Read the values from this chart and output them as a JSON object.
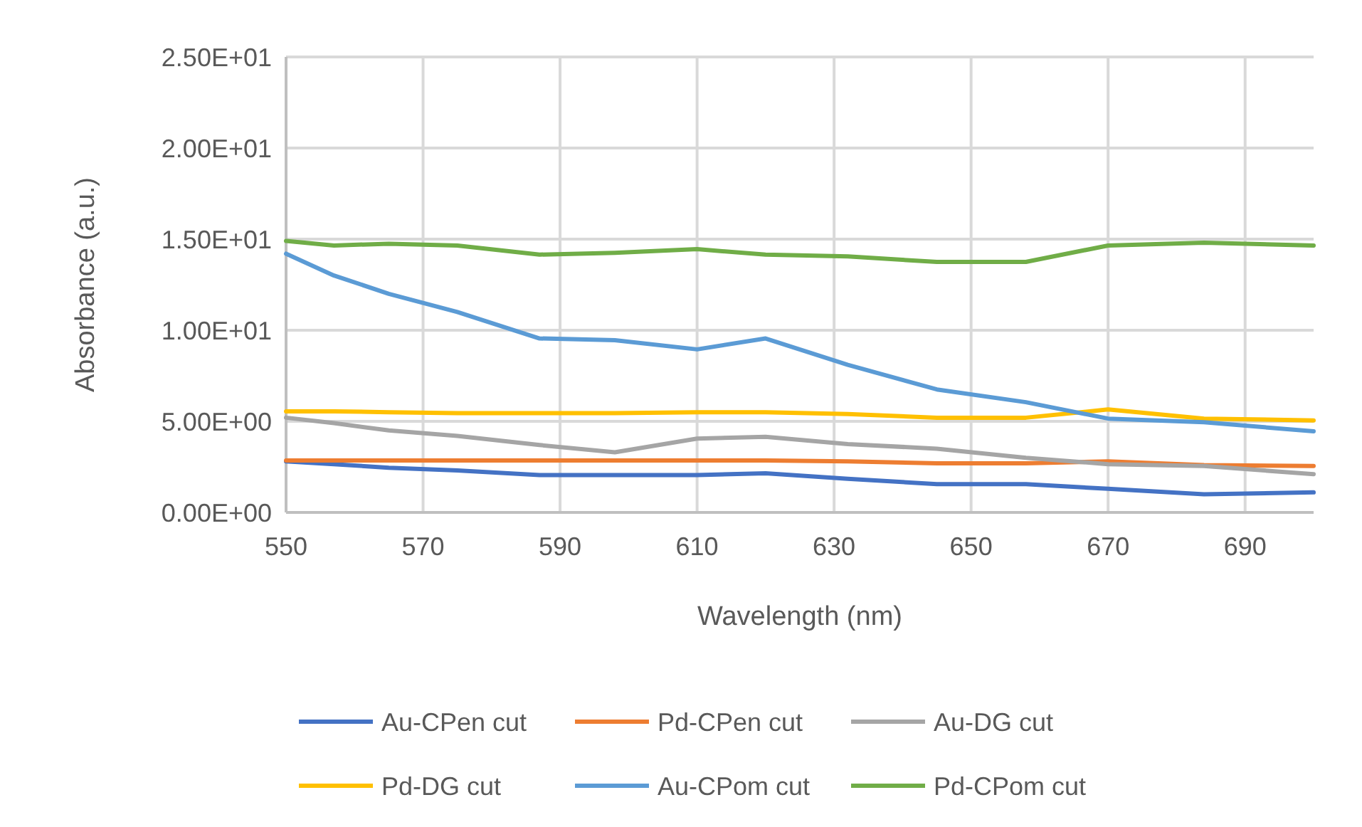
{
  "chart_data": {
    "type": "line",
    "xlabel": "Wavelength (nm)",
    "ylabel": "Absorbance (a.u.)",
    "x": [
      550,
      557,
      565,
      575,
      587,
      598,
      610,
      620,
      632,
      645,
      658,
      670,
      684,
      700
    ],
    "series": [
      {
        "name": "Au-CPen cut",
        "color": "#4472c4",
        "values": [
          2.8,
          2.65,
          2.45,
          2.3,
          2.05,
          2.05,
          2.05,
          2.15,
          1.85,
          1.55,
          1.55,
          1.3,
          1.0,
          1.1
        ]
      },
      {
        "name": "Pd-CPen cut",
        "color": "#ed7d31",
        "values": [
          2.85,
          2.85,
          2.85,
          2.85,
          2.85,
          2.85,
          2.85,
          2.85,
          2.8,
          2.7,
          2.7,
          2.8,
          2.6,
          2.55
        ]
      },
      {
        "name": "Au-DG cut",
        "color": "#a5a5a5",
        "values": [
          5.2,
          4.9,
          4.5,
          4.2,
          3.7,
          3.3,
          4.05,
          4.15,
          3.75,
          3.5,
          3.0,
          2.65,
          2.55,
          2.1
        ]
      },
      {
        "name": "Pd-DG cut",
        "color": "#ffc000",
        "values": [
          5.55,
          5.55,
          5.5,
          5.45,
          5.45,
          5.45,
          5.5,
          5.5,
          5.4,
          5.2,
          5.2,
          5.65,
          5.15,
          5.05
        ]
      },
      {
        "name": "Au-CPom cut",
        "color": "#5b9bd5",
        "values": [
          14.2,
          13.0,
          12.0,
          11.0,
          9.55,
          9.45,
          8.95,
          9.55,
          8.1,
          6.75,
          6.05,
          5.15,
          4.95,
          4.45
        ]
      },
      {
        "name": "Pd-CPom cut",
        "color": "#70ad47",
        "values": [
          14.9,
          14.65,
          14.75,
          14.65,
          14.15,
          14.25,
          14.45,
          14.15,
          14.05,
          13.75,
          13.75,
          14.65,
          14.8,
          14.65
        ]
      }
    ],
    "xlim": [
      550,
      700
    ],
    "xticks": [
      550,
      570,
      590,
      610,
      630,
      650,
      670,
      690
    ],
    "ylim": [
      0,
      25
    ],
    "yticks": [
      {
        "value": 0,
        "label": "0.00E+00"
      },
      {
        "value": 5,
        "label": "5.00E+00"
      },
      {
        "value": 10,
        "label": "1.00E+01"
      },
      {
        "value": 15,
        "label": "1.50E+01"
      },
      {
        "value": 20,
        "label": "2.00E+01"
      },
      {
        "value": 25,
        "label": "2.50E+01"
      }
    ],
    "grid": true,
    "legend": "bottom",
    "marker": "none",
    "line_style": "solid"
  }
}
